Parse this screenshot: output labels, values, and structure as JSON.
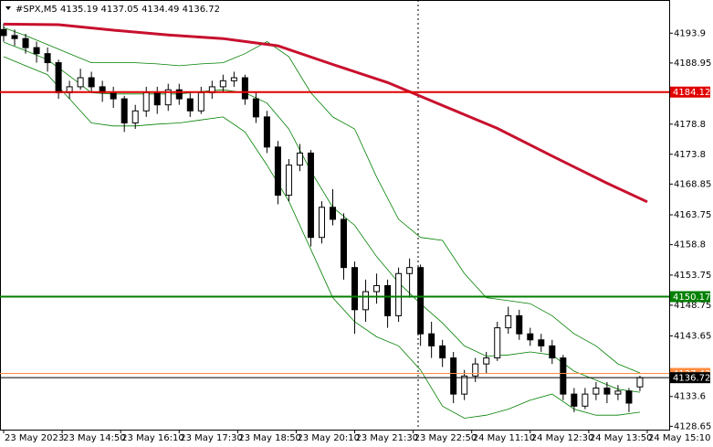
{
  "chart_data": {
    "type": "candlestick",
    "symbol": "#SPX,M5",
    "x": [
      0,
      3,
      6,
      9,
      12,
      15,
      18,
      21,
      24,
      27,
      30,
      33,
      36,
      39,
      42,
      45,
      48,
      51,
      54,
      57,
      60,
      63,
      66,
      69,
      72,
      75,
      78,
      81,
      84,
      87,
      90,
      93,
      96,
      99,
      102,
      105,
      108,
      111,
      114,
      117,
      120,
      123,
      126,
      129,
      132,
      135,
      138,
      141,
      144,
      147,
      150,
      153,
      156,
      159,
      162,
      165,
      168,
      171,
      174
    ],
    "candles": [
      [
        4194.5,
        4195.5,
        4192.5,
        4193.5
      ],
      [
        4193.5,
        4194.5,
        4191.8,
        4193
      ],
      [
        4193,
        4193.8,
        4190.5,
        4191.5
      ],
      [
        4191.5,
        4192.5,
        4189,
        4190.5
      ],
      [
        4190.5,
        4191.5,
        4187.5,
        4189
      ],
      [
        4189,
        4189.5,
        4183,
        4184
      ],
      [
        4184,
        4186,
        4183,
        4185
      ],
      [
        4185,
        4188,
        4184.5,
        4186.5
      ],
      [
        4186.5,
        4187.5,
        4184,
        4185
      ],
      [
        4185,
        4186,
        4182.5,
        4184
      ],
      [
        4184,
        4185,
        4181.5,
        4183
      ],
      [
        4183,
        4183.5,
        4177.5,
        4179
      ],
      [
        4179,
        4182,
        4178,
        4181
      ],
      [
        4181,
        4185,
        4180,
        4184
      ],
      [
        4184,
        4185,
        4180.5,
        4182
      ],
      [
        4182,
        4185.5,
        4181,
        4184.5
      ],
      [
        4184.5,
        4185.5,
        4182,
        4183
      ],
      [
        4183,
        4184,
        4180,
        4181
      ],
      [
        4181,
        4185,
        4180.5,
        4184
      ],
      [
        4184,
        4186,
        4183,
        4185
      ],
      [
        4185,
        4187,
        4184,
        4186
      ],
      [
        4186,
        4187.5,
        4185,
        4186.5
      ],
      [
        4186.5,
        4187,
        4182,
        4183
      ],
      [
        4183,
        4184,
        4179,
        4180
      ],
      [
        4180,
        4181,
        4174,
        4175
      ],
      [
        4175,
        4176,
        4165.5,
        4167
      ],
      [
        4167,
        4173,
        4166,
        4172
      ],
      [
        4172,
        4175.5,
        4171,
        4174
      ],
      [
        4174,
        4174.5,
        4158.5,
        4160
      ],
      [
        4160,
        4166,
        4159,
        4165
      ],
      [
        4165,
        4168,
        4162,
        4163
      ],
      [
        4163,
        4164,
        4153,
        4155
      ],
      [
        4155,
        4156,
        4144,
        4148
      ],
      [
        4148,
        4153,
        4146,
        4151
      ],
      [
        4151,
        4154,
        4149,
        4152
      ],
      [
        4152,
        4153,
        4145,
        4147
      ],
      [
        4147,
        4155,
        4146,
        4154
      ],
      [
        4154,
        4156.5,
        4150,
        4155
      ],
      [
        4155,
        4155.5,
        4142,
        4144
      ],
      [
        4144,
        4146,
        4140,
        4142
      ],
      [
        4142,
        4143,
        4138.5,
        4140
      ],
      [
        4140,
        4141,
        4132.5,
        4134
      ],
      [
        4134,
        4138,
        4133,
        4137
      ],
      [
        4137,
        4140,
        4136,
        4139
      ],
      [
        4139,
        4141,
        4137.5,
        4140
      ],
      [
        4140,
        4146,
        4139.5,
        4145
      ],
      [
        4145,
        4148.5,
        4144,
        4147
      ],
      [
        4147,
        4148,
        4143,
        4144
      ],
      [
        4144,
        4145,
        4142,
        4143
      ],
      [
        4143,
        4144,
        4141,
        4142
      ],
      [
        4142,
        4143,
        4139,
        4140
      ],
      [
        4140,
        4140.5,
        4133,
        4134
      ],
      [
        4134,
        4135,
        4131,
        4132
      ],
      [
        4132,
        4135,
        4131.5,
        4134
      ],
      [
        4134,
        4136,
        4133,
        4135
      ],
      [
        4135,
        4136,
        4132.5,
        4134
      ],
      [
        4134,
        4135.5,
        4133,
        4134.5
      ],
      [
        4134.5,
        4135,
        4131,
        4132.5
      ],
      [
        4135.19,
        4137.05,
        4134.49,
        4136.72
      ]
    ],
    "bands": {
      "color": "#008000",
      "x": [
        0,
        6,
        12,
        18,
        24,
        30,
        36,
        42,
        48,
        54,
        60,
        66,
        72,
        78,
        84,
        90,
        96,
        102,
        108,
        114,
        120,
        126,
        132,
        138,
        144,
        150,
        156,
        162,
        168,
        174
      ],
      "upper": [
        4194.8,
        4193.5,
        4192,
        4190.5,
        4189,
        4189,
        4189,
        4188.8,
        4188.5,
        4188.8,
        4189,
        4190.5,
        4192.5,
        4190,
        4184,
        4180,
        4178,
        4170,
        4163,
        4160,
        4159.5,
        4154,
        4150,
        4149.5,
        4149,
        4147,
        4144,
        4142,
        4139,
        4137.5
      ],
      "middle": [
        4192.4,
        4191,
        4189.5,
        4186.8,
        4184,
        4183.8,
        4183.8,
        4183.8,
        4183.8,
        4184.2,
        4184.5,
        4184,
        4182.3,
        4178,
        4171,
        4165,
        4162,
        4156.8,
        4152.5,
        4149,
        4145.8,
        4142,
        4140.3,
        4140.5,
        4141,
        4140.5,
        4137.8,
        4136.3,
        4134.8,
        4134.3
      ],
      "lower": [
        4190,
        4188.5,
        4187,
        4183,
        4179,
        4178.5,
        4178.5,
        4178.8,
        4179,
        4179.5,
        4180,
        4177.5,
        4172,
        4166,
        4158,
        4150,
        4146,
        4143.5,
        4142,
        4138,
        4132,
        4130,
        4130.5,
        4131.5,
        4133,
        4134,
        4131.5,
        4130.5,
        4130.5,
        4131
      ]
    },
    "ma": {
      "color": "#c8102e",
      "x": [
        0,
        15,
        30,
        45,
        60,
        75,
        90,
        105,
        120,
        135,
        150,
        165,
        176
      ],
      "values": [
        4195.4,
        4195.3,
        4194.4,
        4193.6,
        4193,
        4191.8,
        4188.7,
        4185.7,
        4181.9,
        4178.1,
        4173.5,
        4169,
        4165.9
      ]
    },
    "levels": [
      {
        "value": 4184.12,
        "color": "#e00000"
      },
      {
        "value": 4150.17,
        "color": "#008000"
      },
      {
        "value": 4137.43,
        "color": "#ff8c40"
      },
      {
        "value": 4136.72,
        "color": "#000000"
      }
    ],
    "xlim": [
      -1,
      182
    ],
    "ylim": [
      4128.1,
      4199.4
    ],
    "yticks": [
      4193.9,
      4188.95,
      4178.8,
      4173.8,
      4168.85,
      4163.75,
      4158.8,
      4153.75,
      4148.75,
      4143.65,
      4133.6,
      4128.65
    ],
    "xticks": [
      {
        "value": 0,
        "label": "23 May 2023"
      },
      {
        "value": 16,
        "label": "23 May 14:50"
      },
      {
        "value": 32,
        "label": "23 May 16:10"
      },
      {
        "value": 48,
        "label": "23 May 17:30"
      },
      {
        "value": 64,
        "label": "23 May 18:50"
      },
      {
        "value": 80,
        "label": "23 May 20:10"
      },
      {
        "value": 96,
        "label": "23 May 21:30"
      },
      {
        "value": 112,
        "label": "23 May 22:50"
      },
      {
        "value": 128,
        "label": "24 May 11:10"
      },
      {
        "value": 144,
        "label": "24 May 12:30"
      },
      {
        "value": 160,
        "label": "24 May 13:50"
      },
      {
        "value": 176,
        "label": "24 May 15:10"
      }
    ]
  }
}
